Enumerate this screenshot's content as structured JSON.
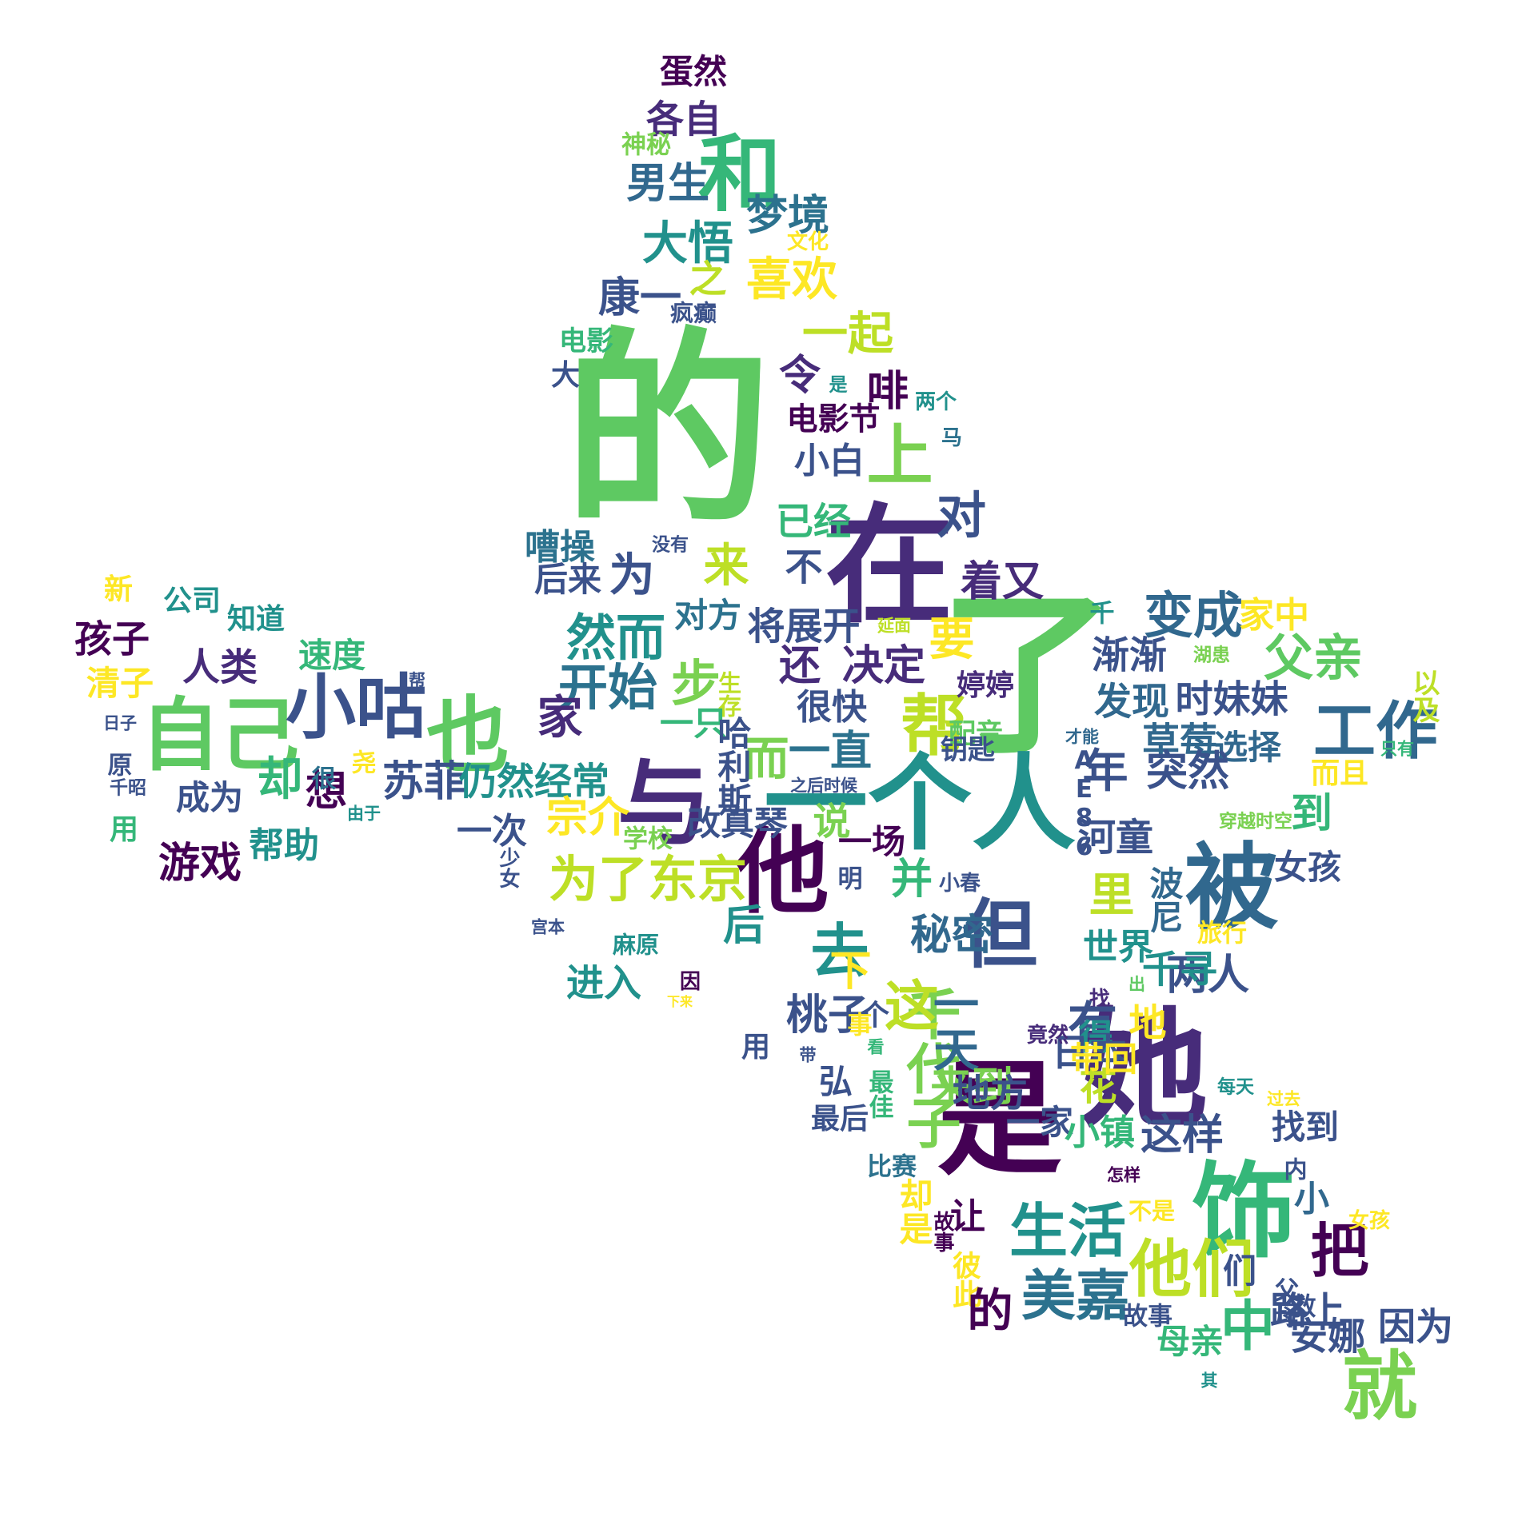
{
  "words": [
    {
      "text": "的",
      "color": "#5ec962",
      "size": 1
    },
    {
      "text": "了",
      "color": "#5ec962",
      "size": 0.85
    },
    {
      "text": "在",
      "color": "#472c7a",
      "size": 0.62
    },
    {
      "text": "她",
      "color": "#472c7a",
      "size": 0.62
    },
    {
      "text": "是",
      "color": "#440154",
      "size": 0.6
    },
    {
      "text": "一个人",
      "color": "#21918c",
      "size": 0.5
    },
    {
      "text": "饰",
      "color": "#35b779",
      "size": 0.5
    },
    {
      "text": "与",
      "color": "#472c7a",
      "size": 0.45
    },
    {
      "text": "他",
      "color": "#440154",
      "size": 0.45
    },
    {
      "text": "被",
      "color": "#31688e",
      "size": 0.45
    },
    {
      "text": "和",
      "color": "#35b779",
      "size": 0.4
    },
    {
      "text": "也",
      "color": "#5ec962",
      "size": 0.4
    },
    {
      "text": "自己",
      "color": "#5ec962",
      "size": 0.38
    },
    {
      "text": "但",
      "color": "#3b528b",
      "size": 0.36
    },
    {
      "text": "就",
      "color": "#7ad151",
      "size": 0.36
    },
    {
      "text": "小咕",
      "color": "#3b528b",
      "size": 0.34
    },
    {
      "text": "上",
      "color": "#7ad151",
      "size": 0.32
    },
    {
      "text": "帮",
      "color": "#bddf26",
      "size": 0.32
    },
    {
      "text": "他们",
      "color": "#bddf26",
      "size": 0.3
    },
    {
      "text": "工作",
      "color": "#31688e",
      "size": 0.3
    },
    {
      "text": "去",
      "color": "#21918c",
      "size": 0.28
    },
    {
      "text": "把",
      "color": "#440154",
      "size": 0.28
    },
    {
      "text": "生活",
      "color": "#21918c",
      "size": 0.28
    },
    {
      "text": "千代子",
      "color": "#7ad151",
      "size": 0.26
    },
    {
      "text": "中",
      "color": "#35b779",
      "size": 0.26
    },
    {
      "text": "美嘉",
      "color": "#2c728e",
      "size": 0.26
    },
    {
      "text": "为了东京",
      "color": "#bddf26",
      "size": 0.24
    },
    {
      "text": "变成",
      "color": "#31688e",
      "size": 0.24
    },
    {
      "text": "父亲",
      "color": "#5ec962",
      "size": 0.24
    },
    {
      "text": "然而",
      "color": "#21918c",
      "size": 0.24
    },
    {
      "text": "开始",
      "color": "#2c728e",
      "size": 0.24
    },
    {
      "text": "一起",
      "color": "#bddf26",
      "size": 0.22
    },
    {
      "text": "大悟",
      "color": "#21918c",
      "size": 0.22
    },
    {
      "text": "喜欢",
      "color": "#fde725",
      "size": 0.22
    },
    {
      "text": "男生",
      "color": "#31688e",
      "size": 0.2
    },
    {
      "text": "梦境",
      "color": "#2c728e",
      "size": 0.2
    },
    {
      "text": "康一",
      "color": "#3b528b",
      "size": 0.2
    },
    {
      "text": "之",
      "color": "#bddf26",
      "size": 0.18
    },
    {
      "text": "各自",
      "color": "#472c7a",
      "size": 0.18
    },
    {
      "text": "蛋然",
      "color": "#440154",
      "size": 0.16
    },
    {
      "text": "神秘",
      "color": "#7ad151",
      "size": 0.12
    },
    {
      "text": "文化",
      "color": "#fde725",
      "size": 0.1
    },
    {
      "text": "疯癫",
      "color": "#3b528b",
      "size": 0.11
    },
    {
      "text": "电影",
      "color": "#35b779",
      "size": 0.13
    },
    {
      "text": "大",
      "color": "#3b528b",
      "size": 0.14
    },
    {
      "text": "令",
      "color": "#472c7a",
      "size": 0.2
    },
    {
      "text": "是",
      "color": "#21918c",
      "size": 0.09
    },
    {
      "text": "啡",
      "color": "#440154",
      "size": 0.2
    },
    {
      "text": "两个",
      "color": "#21918c",
      "size": 0.1
    },
    {
      "text": "电影节",
      "color": "#440154",
      "size": 0.15
    },
    {
      "text": "马",
      "color": "#2c728e",
      "size": 0.1
    },
    {
      "text": "小白",
      "color": "#3b528b",
      "size": 0.17
    },
    {
      "text": "已经",
      "color": "#35b779",
      "size": 0.18
    },
    {
      "text": "对",
      "color": "#3b528b",
      "size": 0.24
    },
    {
      "text": "着又",
      "color": "#472c7a",
      "size": 0.2
    },
    {
      "text": "嘈操",
      "color": "#2c728e",
      "size": 0.17
    },
    {
      "text": "没有",
      "color": "#3b528b",
      "size": 0.09
    },
    {
      "text": "后来",
      "color": "#3b528b",
      "size": 0.16
    },
    {
      "text": "为",
      "color": "#3b528b",
      "size": 0.22
    },
    {
      "text": "来",
      "color": "#bddf26",
      "size": 0.22
    },
    {
      "text": "不",
      "color": "#3b528b",
      "size": 0.18
    },
    {
      "text": "对方",
      "color": "#2c728e",
      "size": 0.16
    },
    {
      "text": "将展开",
      "color": "#3b528b",
      "size": 0.18
    },
    {
      "text": "延面",
      "color": "#bddf26",
      "size": 0.08
    },
    {
      "text": "要",
      "color": "#fde725",
      "size": 0.22
    },
    {
      "text": "还",
      "color": "#472c7a",
      "size": 0.2
    },
    {
      "text": "决定",
      "color": "#472c7a",
      "size": 0.2
    },
    {
      "text": "步",
      "color": "#7ad151",
      "size": 0.24
    },
    {
      "text": "生存",
      "color": "#bddf26",
      "size": 0.11
    },
    {
      "text": "很快",
      "color": "#3b528b",
      "size": 0.17
    },
    {
      "text": "婷婷",
      "color": "#472c7a",
      "size": 0.14
    },
    {
      "text": "渐渐",
      "color": "#3b528b",
      "size": 0.18
    },
    {
      "text": "湖患",
      "color": "#7ad151",
      "size": 0.09
    },
    {
      "text": "家中",
      "color": "#fde725",
      "size": 0.17
    },
    {
      "text": "千",
      "color": "#21918c",
      "size": 0.12
    },
    {
      "text": "新",
      "color": "#fde725",
      "size": 0.14
    },
    {
      "text": "公司",
      "color": "#21918c",
      "size": 0.14
    },
    {
      "text": "知道",
      "color": "#21918c",
      "size": 0.14
    },
    {
      "text": "孩子",
      "color": "#440154",
      "size": 0.18
    },
    {
      "text": "人类",
      "color": "#472c7a",
      "size": 0.18
    },
    {
      "text": "速度",
      "color": "#35b779",
      "size": 0.16
    },
    {
      "text": "清子",
      "color": "#fde725",
      "size": 0.16
    },
    {
      "text": "帮",
      "color": "#3b528b",
      "size": 0.08
    },
    {
      "text": "发现",
      "color": "#31688e",
      "size": 0.18
    },
    {
      "text": "时妹妹",
      "color": "#3b528b",
      "size": 0.18
    },
    {
      "text": "以及",
      "color": "#bddf26",
      "size": 0.13
    },
    {
      "text": "家",
      "color": "#472c7a",
      "size": 0.22
    },
    {
      "text": "一只",
      "color": "#35b779",
      "size": 0.16
    },
    {
      "text": "而",
      "color": "#7ad151",
      "size": 0.22
    },
    {
      "text": "一直",
      "color": "#2c728e",
      "size": 0.2
    },
    {
      "text": "哈利斯",
      "color": "#3b528b",
      "size": 0.16
    },
    {
      "text": "配音",
      "color": "#5ec962",
      "size": 0.13
    },
    {
      "text": "钥匙",
      "color": "#3b528b",
      "size": 0.13
    },
    {
      "text": "草莓",
      "color": "#31688e",
      "size": 0.18
    },
    {
      "text": "选择",
      "color": "#31688e",
      "size": 0.16
    },
    {
      "text": "才能",
      "color": "#31688e",
      "size": 0.08
    },
    {
      "text": "只有",
      "color": "#35b779",
      "size": 0.08
    },
    {
      "text": "日子",
      "color": "#3b528b",
      "size": 0.08
    },
    {
      "text": "原",
      "color": "#3b528b",
      "size": 0.12
    },
    {
      "text": "千昭",
      "color": "#3b528b",
      "size": 0.09
    },
    {
      "text": "尧",
      "color": "#fde725",
      "size": 0.12
    },
    {
      "text": "却",
      "color": "#35b779",
      "size": 0.22
    },
    {
      "text": "想",
      "color": "#440154",
      "size": 0.2
    },
    {
      "text": "很",
      "color": "#2c728e",
      "size": 0.12
    },
    {
      "text": "苏菲",
      "color": "#3b528b",
      "size": 0.2
    },
    {
      "text": "仍然经常",
      "color": "#21918c",
      "size": 0.18
    },
    {
      "text": "之后时候",
      "color": "#3b528b",
      "size": 0.08
    },
    {
      "text": "年",
      "color": "#3b528b",
      "size": 0.22
    },
    {
      "text": "突然",
      "color": "#3b528b",
      "size": 0.2
    },
    {
      "text": "而且",
      "color": "#fde725",
      "size": 0.14
    },
    {
      "text": "成为",
      "color": "#3b528b",
      "size": 0.16
    },
    {
      "text": "用",
      "color": "#35b779",
      "size": 0.14
    },
    {
      "text": "由于",
      "color": "#21918c",
      "size": 0.08
    },
    {
      "text": "改真琴",
      "color": "#3b528b",
      "size": 0.16
    },
    {
      "text": "宗介",
      "color": "#fde725",
      "size": 0.2
    },
    {
      "text": "说",
      "color": "#7ad151",
      "size": 0.18
    },
    {
      "text": "一场",
      "color": "#440154",
      "size": 0.16
    },
    {
      "text": "AE86",
      "color": "#3b528b",
      "size": 0.12
    },
    {
      "text": "河童",
      "color": "#3b528b",
      "size": 0.18
    },
    {
      "text": "穿越时空",
      "color": "#7ad151",
      "size": 0.09
    },
    {
      "text": "到",
      "color": "#35b779",
      "size": 0.2
    },
    {
      "text": "游戏",
      "color": "#440154",
      "size": 0.2
    },
    {
      "text": "帮助",
      "color": "#21918c",
      "size": 0.17
    },
    {
      "text": "一次",
      "color": "#3b528b",
      "size": 0.17
    },
    {
      "text": "学校",
      "color": "#7ad151",
      "size": 0.12
    },
    {
      "text": "少女",
      "color": "#3b528b",
      "size": 0.1
    },
    {
      "text": "女孩",
      "color": "#3b528b",
      "size": 0.16
    },
    {
      "text": "明",
      "color": "#3b528b",
      "size": 0.12
    },
    {
      "text": "并",
      "color": "#35b779",
      "size": 0.2
    },
    {
      "text": "小春",
      "color": "#3b528b",
      "size": 0.1
    },
    {
      "text": "里",
      "color": "#bddf26",
      "size": 0.22
    },
    {
      "text": "波尼",
      "color": "#31688e",
      "size": 0.16
    },
    {
      "text": "旅行",
      "color": "#fde725",
      "size": 0.12
    },
    {
      "text": "宫本",
      "color": "#3b528b",
      "size": 0.08
    },
    {
      "text": "麻原",
      "color": "#21918c",
      "size": 0.11
    },
    {
      "text": "后",
      "color": "#21918c",
      "size": 0.2
    },
    {
      "text": "秘密",
      "color": "#31688e",
      "size": 0.2
    },
    {
      "text": "世界",
      "color": "#21918c",
      "size": 0.17
    },
    {
      "text": "两人",
      "color": "#3b528b",
      "size": 0.2
    },
    {
      "text": "下",
      "color": "#fde725",
      "size": 0.2
    },
    {
      "text": "进入",
      "color": "#21918c",
      "size": 0.18
    },
    {
      "text": "千寻",
      "color": "#21918c",
      "size": 0.18
    },
    {
      "text": "出",
      "color": "#5ec962",
      "size": 0.08
    },
    {
      "text": "因",
      "color": "#440154",
      "size": 0.1
    },
    {
      "text": "找",
      "color": "#472c7a",
      "size": 0.1
    },
    {
      "text": "下来",
      "color": "#fde725",
      "size": 0.06
    },
    {
      "text": "桃子",
      "color": "#3b528b",
      "size": 0.2
    },
    {
      "text": "这",
      "color": "#bddf26",
      "size": 0.26
    },
    {
      "text": "一天",
      "color": "#31688e",
      "size": 0.22
    },
    {
      "text": "有",
      "color": "#3b528b",
      "size": 0.24
    },
    {
      "text": "个",
      "color": "#3b528b",
      "size": 0.14
    },
    {
      "text": "事",
      "color": "#fde725",
      "size": 0.12
    },
    {
      "text": "得",
      "color": "#21918c",
      "size": 0.17
    },
    {
      "text": "地",
      "color": "#fde725",
      "size": 0.18
    },
    {
      "text": "用",
      "color": "#3b528b",
      "size": 0.14
    },
    {
      "text": "带",
      "color": "#3b528b",
      "size": 0.08
    },
    {
      "text": "看",
      "color": "#35b779",
      "size": 0.08
    },
    {
      "text": "日本",
      "color": "#3b528b",
      "size": 0.18
    },
    {
      "text": "竟然",
      "color": "#472c7a",
      "size": 0.1
    },
    {
      "text": "花",
      "color": "#bddf26",
      "size": 0.18
    },
    {
      "text": "每天",
      "color": "#21918c",
      "size": 0.09
    },
    {
      "text": "带回",
      "color": "#fde725",
      "size": 0.16
    },
    {
      "text": "弘",
      "color": "#3b528b",
      "size": 0.16
    },
    {
      "text": "最佳",
      "color": "#35b779",
      "size": 0.12
    },
    {
      "text": "来到",
      "color": "#7ad151",
      "size": 0.2
    },
    {
      "text": "地方",
      "color": "#3b528b",
      "size": 0.18
    },
    {
      "text": "过去",
      "color": "#fde725",
      "size": 0.08
    },
    {
      "text": "找到",
      "color": "#3b528b",
      "size": 0.16
    },
    {
      "text": "最后",
      "color": "#3b528b",
      "size": 0.14
    },
    {
      "text": "一家",
      "color": "#3b528b",
      "size": 0.16
    },
    {
      "text": "小镇",
      "color": "#35b779",
      "size": 0.17
    },
    {
      "text": "这样",
      "color": "#3b528b",
      "size": 0.2
    },
    {
      "text": "比赛",
      "color": "#2c728e",
      "size": 0.12
    },
    {
      "text": "怎样",
      "color": "#440154",
      "size": 0.08
    },
    {
      "text": "内",
      "color": "#3b528b",
      "size": 0.11
    },
    {
      "text": "小",
      "color": "#31688e",
      "size": 0.17
    },
    {
      "text": "女孩",
      "color": "#fde725",
      "size": 0.1
    },
    {
      "text": "却是",
      "color": "#fde725",
      "size": 0.16
    },
    {
      "text": "故事",
      "color": "#440154",
      "size": 0.1
    },
    {
      "text": "让",
      "color": "#440154",
      "size": 0.17
    },
    {
      "text": "不是",
      "color": "#fde725",
      "size": 0.11
    },
    {
      "text": "彼此",
      "color": "#fde725",
      "size": 0.14
    },
    {
      "text": "的",
      "color": "#440154",
      "size": 0.22
    },
    {
      "text": "故事",
      "color": "#3b528b",
      "size": 0.12
    },
    {
      "text": "们",
      "color": "#3b528b",
      "size": 0.16
    },
    {
      "text": "救",
      "color": "#3b528b",
      "size": 0.12
    },
    {
      "text": "父母",
      "color": "#3b528b",
      "size": 0.12
    },
    {
      "text": "因为",
      "color": "#3b528b",
      "size": 0.18
    },
    {
      "text": "安娜",
      "color": "#3b528b",
      "size": 0.18
    },
    {
      "text": "路上",
      "color": "#3b528b",
      "size": 0.18
    },
    {
      "text": "母亲",
      "color": "#35b779",
      "size": 0.16
    },
    {
      "text": "其",
      "color": "#21918c",
      "size": 0.08
    }
  ]
}
